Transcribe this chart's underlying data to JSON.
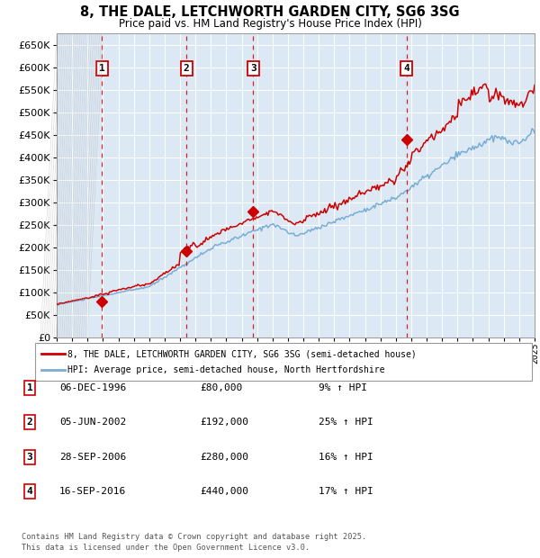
{
  "title": "8, THE DALE, LETCHWORTH GARDEN CITY, SG6 3SG",
  "subtitle": "Price paid vs. HM Land Registry's House Price Index (HPI)",
  "legend_line1": "8, THE DALE, LETCHWORTH GARDEN CITY, SG6 3SG (semi-detached house)",
  "legend_line2": "HPI: Average price, semi-detached house, North Hertfordshire",
  "footer1": "Contains HM Land Registry data © Crown copyright and database right 2025.",
  "footer2": "This data is licensed under the Open Government Licence v3.0.",
  "red_color": "#cc0000",
  "blue_color": "#7aadd4",
  "plot_bg": "#dce9f5",
  "grid_color": "#ffffff",
  "sale_markers": [
    {
      "label": "1",
      "year": 1996.92,
      "price": 80000
    },
    {
      "label": "2",
      "year": 2002.42,
      "price": 192000
    },
    {
      "label": "3",
      "year": 2006.74,
      "price": 280000
    },
    {
      "label": "4",
      "year": 2016.7,
      "price": 440000
    }
  ],
  "sale_table": [
    {
      "num": "1",
      "date": "06-DEC-1996",
      "price": "£80,000",
      "hpi": "9% ↑ HPI"
    },
    {
      "num": "2",
      "date": "05-JUN-2002",
      "price": "£192,000",
      "hpi": "25% ↑ HPI"
    },
    {
      "num": "3",
      "date": "28-SEP-2006",
      "price": "£280,000",
      "hpi": "16% ↑ HPI"
    },
    {
      "num": "4",
      "date": "16-SEP-2016",
      "price": "£440,000",
      "hpi": "17% ↑ HPI"
    }
  ],
  "ylim": [
    0,
    675000
  ],
  "yticks": [
    0,
    50000,
    100000,
    150000,
    200000,
    250000,
    300000,
    350000,
    400000,
    450000,
    500000,
    550000,
    600000,
    650000
  ],
  "year_start": 1994,
  "year_end": 2025
}
